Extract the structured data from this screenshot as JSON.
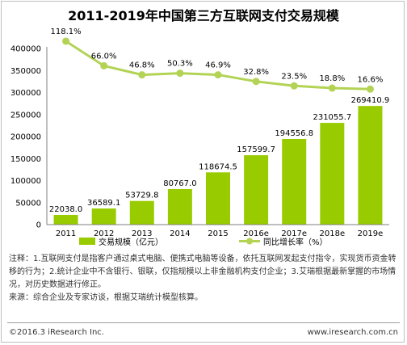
{
  "chart_data": {
    "type": "bar",
    "title": "2011-2019年中国第三方互联网支付交易规模",
    "categories": [
      "2011",
      "2012",
      "2013",
      "2014",
      "2015",
      "2016e",
      "2017e",
      "2018e",
      "2019e"
    ],
    "series": [
      {
        "name": "交易规模（亿元）",
        "type": "bar",
        "values": [
          22038.0,
          36589.1,
          53729.8,
          80767.0,
          118674.5,
          157599.7,
          194556.8,
          231055.7,
          269410.9
        ],
        "labels": [
          "22038.0",
          "36589.1",
          "53729.8",
          "80767.0",
          "118674.5",
          "157599.7",
          "194556.8",
          "231055.7",
          "269410.9"
        ],
        "color": "#99cc00"
      },
      {
        "name": "同比增长率（%）",
        "type": "line",
        "values": [
          118.1,
          66.0,
          46.8,
          50.3,
          46.9,
          32.8,
          23.5,
          18.8,
          16.6
        ],
        "labels": [
          "118.1%",
          "66.0%",
          "46.8%",
          "50.3%",
          "46.9%",
          "32.8%",
          "23.5%",
          "18.8%",
          "16.6%"
        ],
        "color": "#b3d355"
      }
    ],
    "y_ticks": [
      "400000",
      "350000",
      "300000",
      "250000",
      "200000",
      "150000",
      "100000",
      "50000",
      "0"
    ],
    "ylim": [
      0,
      400000
    ],
    "legend_position": "bottom"
  },
  "notes": {
    "note1": "注释：1.互联网支付是指客户通过桌式电脑、便携式电脑等设备，依托互联网发起支付指令，实现货币资金转移的行为；2.统计企业中不含银行、银联，仅指规模以上非金融机构支付企业；3.艾瑞根据最新掌握的市场情况，对历史数据进行修正。",
    "note2": "来源：综合企业及专家访谈，根据艾瑞统计模型核算。"
  },
  "footer": {
    "copyright": "©2016.3 iResearch Inc.",
    "website": "www.iresearch.com.cn"
  }
}
